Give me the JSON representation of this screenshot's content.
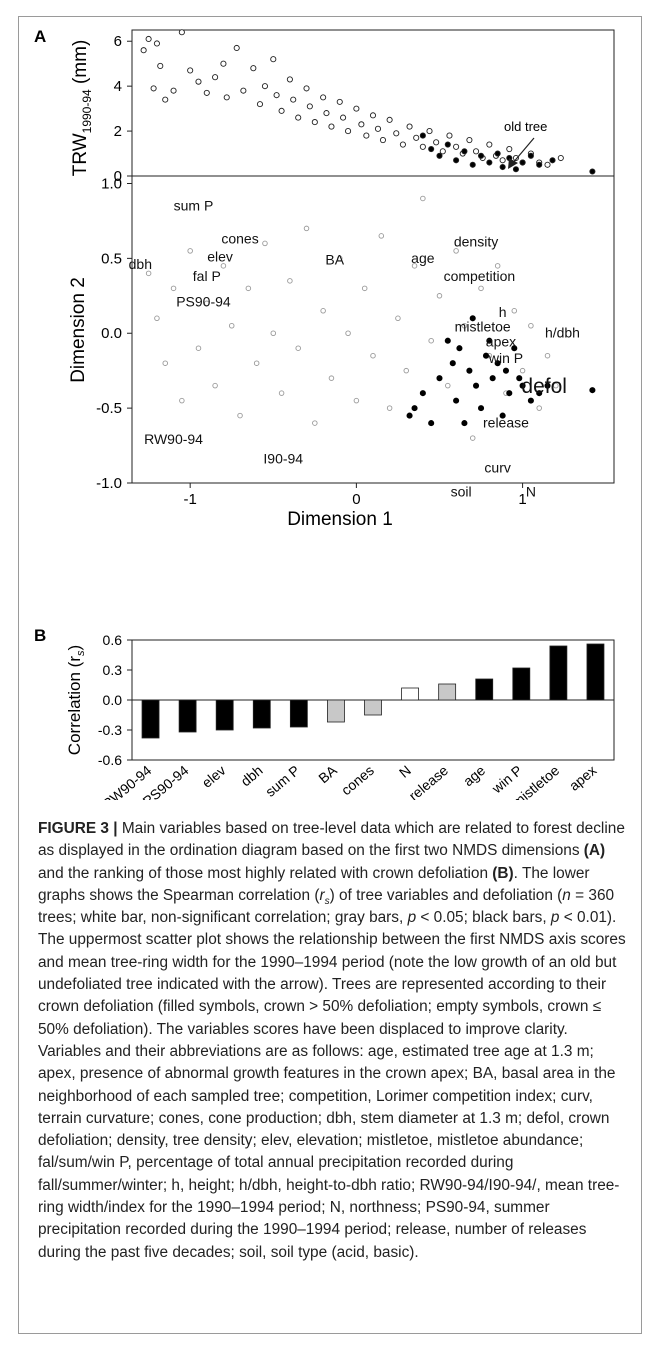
{
  "figure": {
    "panel_a_label": "A",
    "panel_b_label": "B",
    "top_plot": {
      "ylabel_main": "TRW",
      "ylabel_sub": "1990-94",
      "ylabel_unit": " (mm)",
      "annotation": "old tree",
      "yticks": [
        "6",
        "4",
        "2",
        "0"
      ]
    },
    "nmds_plot": {
      "xlabel": "Dimension 1",
      "ylabel": "Dimension 2",
      "xticks": [
        "-1",
        "0",
        "1"
      ],
      "yticks": [
        "1.0",
        "0.5",
        "0.0",
        "-0.5",
        "-1.0"
      ],
      "variables": [
        "sum P",
        "cones",
        "elev",
        "BA",
        "age",
        "density",
        "dbh",
        "fal P",
        "competition",
        "PS90-94",
        "h",
        "mistletoe",
        "h/dbh",
        "apex",
        "win P",
        "defol",
        "release",
        "RW90-94",
        "I90-94",
        "curv",
        "soil",
        "N"
      ]
    },
    "bar_plot": {
      "ylabel": "Correlation (r",
      "ylabel_sub": "s",
      "ylabel_end": ")",
      "yticks": [
        "0.6",
        "0.3",
        "0.0",
        "-0.3",
        "-0.6"
      ]
    }
  },
  "chart_data": [
    {
      "type": "scatter",
      "panel": "A (top)",
      "ylabel": "TRW1990-94 (mm)",
      "ylim": [
        0,
        6.5
      ],
      "xlim": [
        -1.35,
        1.55
      ],
      "annotation": "old tree",
      "series": [
        {
          "filled": false,
          "points": [
            [
              -1.28,
              5.6
            ],
            [
              -1.25,
              6.1
            ],
            [
              -1.2,
              5.9
            ],
            [
              -1.18,
              4.9
            ],
            [
              -1.15,
              3.4
            ],
            [
              -1.22,
              3.9
            ],
            [
              -1.1,
              3.8
            ],
            [
              -1.05,
              6.4
            ],
            [
              -1.0,
              4.7
            ],
            [
              -0.95,
              4.2
            ],
            [
              -0.9,
              3.7
            ],
            [
              -0.85,
              4.4
            ],
            [
              -0.8,
              5.0
            ],
            [
              -0.78,
              3.5
            ],
            [
              -0.72,
              5.7
            ],
            [
              -0.68,
              3.8
            ],
            [
              -0.62,
              4.8
            ],
            [
              -0.58,
              3.2
            ],
            [
              -0.55,
              4.0
            ],
            [
              -0.5,
              5.2
            ],
            [
              -0.48,
              3.6
            ],
            [
              -0.45,
              2.9
            ],
            [
              -0.4,
              4.3
            ],
            [
              -0.38,
              3.4
            ],
            [
              -0.35,
              2.6
            ],
            [
              -0.3,
              3.9
            ],
            [
              -0.28,
              3.1
            ],
            [
              -0.25,
              2.4
            ],
            [
              -0.2,
              3.5
            ],
            [
              -0.18,
              2.8
            ],
            [
              -0.15,
              2.2
            ],
            [
              -0.1,
              3.3
            ],
            [
              -0.08,
              2.6
            ],
            [
              -0.05,
              2.0
            ],
            [
              0.0,
              3.0
            ],
            [
              0.03,
              2.3
            ],
            [
              0.06,
              1.8
            ],
            [
              0.1,
              2.7
            ],
            [
              0.13,
              2.1
            ],
            [
              0.16,
              1.6
            ],
            [
              0.2,
              2.5
            ],
            [
              0.24,
              1.9
            ],
            [
              0.28,
              1.4
            ],
            [
              0.32,
              2.2
            ],
            [
              0.36,
              1.7
            ],
            [
              0.4,
              1.3
            ],
            [
              0.44,
              2.0
            ],
            [
              0.48,
              1.5
            ],
            [
              0.52,
              1.1
            ],
            [
              0.56,
              1.8
            ],
            [
              0.6,
              1.3
            ],
            [
              0.64,
              1.0
            ],
            [
              0.68,
              1.6
            ],
            [
              0.72,
              1.1
            ],
            [
              0.76,
              0.8
            ],
            [
              0.8,
              1.4
            ],
            [
              0.84,
              0.9
            ],
            [
              0.88,
              0.7
            ],
            [
              0.92,
              1.2
            ],
            [
              0.96,
              0.8
            ],
            [
              1.0,
              0.6
            ],
            [
              1.05,
              1.0
            ],
            [
              1.1,
              0.6
            ],
            [
              1.15,
              0.5
            ],
            [
              1.23,
              0.8
            ]
          ]
        },
        {
          "filled": true,
          "points": [
            [
              0.4,
              1.8
            ],
            [
              0.45,
              1.2
            ],
            [
              0.5,
              0.9
            ],
            [
              0.55,
              1.4
            ],
            [
              0.6,
              0.7
            ],
            [
              0.65,
              1.1
            ],
            [
              0.7,
              0.5
            ],
            [
              0.75,
              0.9
            ],
            [
              0.8,
              0.6
            ],
            [
              0.85,
              1.0
            ],
            [
              0.88,
              0.4
            ],
            [
              0.92,
              0.8
            ],
            [
              0.96,
              0.3
            ],
            [
              1.0,
              0.6
            ],
            [
              1.05,
              0.9
            ],
            [
              1.1,
              0.5
            ],
            [
              1.18,
              0.7
            ],
            [
              1.42,
              0.2
            ]
          ]
        }
      ]
    },
    {
      "type": "scatter",
      "panel": "A (NMDS)",
      "xlabel": "Dimension 1",
      "ylabel": "Dimension 2",
      "xlim": [
        -1.35,
        1.55
      ],
      "ylim": [
        -1.0,
        1.05
      ],
      "series": [
        {
          "filled": false,
          "points": [
            [
              -1.25,
              0.4
            ],
            [
              -1.2,
              0.1
            ],
            [
              -1.15,
              -0.2
            ],
            [
              -1.1,
              0.3
            ],
            [
              -1.05,
              -0.45
            ],
            [
              -1.0,
              0.55
            ],
            [
              -0.95,
              -0.1
            ],
            [
              -0.9,
              0.2
            ],
            [
              -0.85,
              -0.35
            ],
            [
              -0.8,
              0.45
            ],
            [
              -0.75,
              0.05
            ],
            [
              -0.7,
              -0.55
            ],
            [
              -0.65,
              0.3
            ],
            [
              -0.6,
              -0.2
            ],
            [
              -0.55,
              0.6
            ],
            [
              -0.5,
              0.0
            ],
            [
              -0.45,
              -0.4
            ],
            [
              -0.4,
              0.35
            ],
            [
              -0.35,
              -0.1
            ],
            [
              -0.3,
              0.7
            ],
            [
              -0.25,
              -0.6
            ],
            [
              -0.2,
              0.15
            ],
            [
              -0.15,
              -0.3
            ],
            [
              -0.1,
              0.5
            ],
            [
              -0.05,
              0.0
            ],
            [
              0.0,
              -0.45
            ],
            [
              0.05,
              0.3
            ],
            [
              0.1,
              -0.15
            ],
            [
              0.15,
              0.65
            ],
            [
              0.2,
              -0.5
            ],
            [
              0.25,
              0.1
            ],
            [
              0.3,
              -0.25
            ],
            [
              0.35,
              0.45
            ],
            [
              0.4,
              0.9
            ],
            [
              0.45,
              -0.05
            ],
            [
              0.5,
              0.25
            ],
            [
              0.55,
              -0.35
            ],
            [
              0.6,
              0.55
            ],
            [
              0.65,
              0.05
            ],
            [
              0.7,
              -0.7
            ],
            [
              0.75,
              0.3
            ],
            [
              0.8,
              -0.15
            ],
            [
              0.85,
              0.45
            ],
            [
              0.9,
              -0.4
            ],
            [
              0.95,
              0.15
            ],
            [
              1.0,
              -0.25
            ],
            [
              1.05,
              0.05
            ],
            [
              1.1,
              -0.5
            ],
            [
              1.15,
              -0.15
            ],
            [
              1.2,
              -0.35
            ]
          ]
        },
        {
          "filled": true,
          "points": [
            [
              0.32,
              -0.55
            ],
            [
              0.35,
              -0.5
            ],
            [
              0.4,
              -0.4
            ],
            [
              0.45,
              -0.6
            ],
            [
              0.5,
              -0.3
            ],
            [
              0.55,
              -0.05
            ],
            [
              0.58,
              -0.2
            ],
            [
              0.6,
              -0.45
            ],
            [
              0.62,
              -0.1
            ],
            [
              0.65,
              -0.6
            ],
            [
              0.68,
              -0.25
            ],
            [
              0.7,
              0.1
            ],
            [
              0.72,
              -0.35
            ],
            [
              0.75,
              -0.5
            ],
            [
              0.78,
              -0.15
            ],
            [
              0.8,
              -0.05
            ],
            [
              0.82,
              -0.3
            ],
            [
              0.85,
              -0.2
            ],
            [
              0.88,
              -0.55
            ],
            [
              0.9,
              -0.25
            ],
            [
              0.92,
              -0.4
            ],
            [
              0.95,
              -0.1
            ],
            [
              0.98,
              -0.3
            ],
            [
              1.0,
              -0.35
            ],
            [
              1.05,
              -0.45
            ],
            [
              1.1,
              -0.4
            ],
            [
              1.15,
              -0.35
            ],
            [
              1.42,
              -0.38
            ]
          ]
        }
      ]
    },
    {
      "type": "bar",
      "panel": "B",
      "ylabel": "Correlation (rs)",
      "ylim": [
        -0.6,
        0.6
      ],
      "categories": [
        "RW90-94",
        "PS90-94",
        "elev",
        "dbh",
        "sum P",
        "BA",
        "cones",
        "N",
        "release",
        "age",
        "win P",
        "mistletoe",
        "apex"
      ],
      "values": [
        -0.38,
        -0.32,
        -0.3,
        -0.28,
        -0.27,
        -0.22,
        -0.15,
        0.12,
        0.16,
        0.21,
        0.32,
        0.54,
        0.56
      ],
      "significance": [
        "black",
        "black",
        "black",
        "black",
        "black",
        "gray",
        "gray",
        "white",
        "gray",
        "black",
        "black",
        "black",
        "black"
      ],
      "colors": {
        "black": "#000000",
        "gray": "#c8c8c8",
        "white": "#ffffff"
      }
    }
  ],
  "caption": {
    "fig_label": "FIGURE 3 |",
    "t1": " Main variables based on tree-level data which are related to forest decline as displayed in the ordination diagram based on the first two NMDS dimensions ",
    "a": "(A)",
    "t2": " and the ranking of those most highly related with crown defoliation ",
    "b": "(B)",
    "t3": ". The lower graphs shows the Spearman correlation (",
    "rs_r": "r",
    "rs_s": "s",
    "t4": ") of tree variables and defoliation (",
    "n_i": "n",
    "t5": " = 360 trees; white bar, non-significant correlation; gray bars, ",
    "p1": "p",
    "t6": " < 0.05; black bars, ",
    "p2": "p",
    "t7": " < 0.01). The uppermost scatter plot shows the relationship between the first NMDS axis scores and mean tree-ring width for the 1990–1994 period (note the low growth of an old but undefoliated tree indicated with the arrow). Trees are represented according to their crown defoliation (filled symbols, crown > 50% defoliation; empty symbols, crown ≤ 50% defoliation). The variables scores have been displaced to improve clarity. Variables and their abbreviations are as follows: age, estimated tree age at 1.3 m; apex, presence of abnormal growth features in the crown apex; BA, basal area in the neighborhood of each sampled tree; competition, Lorimer competition index; curv, terrain curvature; cones, cone production; dbh, stem diameter at 1.3 m; defol, crown defoliation; density, tree density; elev, elevation; mistletoe, mistletoe abundance; fal/sum/win P, percentage of total annual precipitation recorded during fall/summer/winter; h, height; h/dbh, height-to-dbh ratio; RW90-94/I90-94/, mean tree-ring width/index for the 1990–1994 period; N, northness; PS90-94, summer precipitation recorded during the 1990–1994 period; release, number of releases during the past five decades; soil, soil type (acid, basic)."
  }
}
